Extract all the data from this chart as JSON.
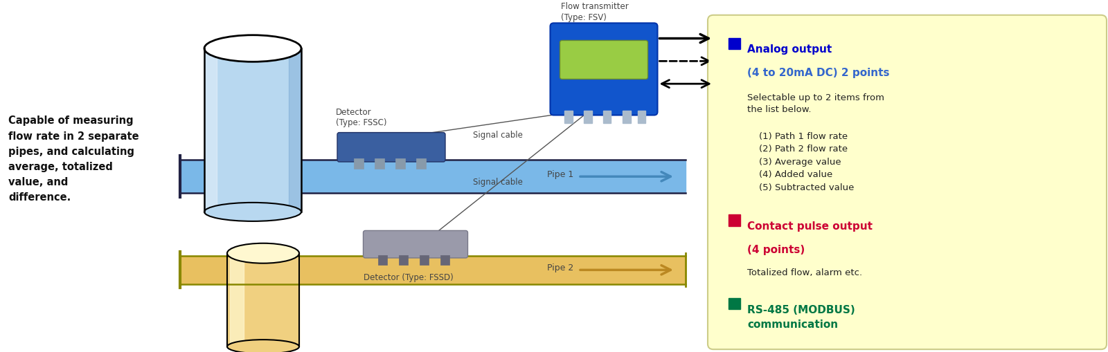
{
  "bg_color": "#ffffff",
  "info_box_bg": "#ffffcc",
  "info_box_border": "#cccc88",
  "pipe1_color": "#7ab8e8",
  "pipe1_dark": "#4488bb",
  "pipe2_color": "#e8c060",
  "pipe2_dark": "#bb8822",
  "pipe2_border": "#888800",
  "cylinder1_body": "#b8d8f0",
  "cylinder1_dark": "#6699cc",
  "cylinder2_body": "#f0d080",
  "cylinder2_highlight": "#fff8d0",
  "cylinder2_dark": "#c8962a",
  "detector1_color": "#4466aa",
  "detector2_color": "#999aaa",
  "transmitter_blue": "#1155cc",
  "transmitter_dark": "#0033aa",
  "screen_color": "#99cc44",
  "left_text": "Capable of measuring\nflow rate in 2 separate\npipes, and calculating\naverage, totalized\nvalue, and\ndifference.",
  "detector1_label": "Detector\n(Type: FSSC)",
  "detector2_label": "Detector (Type: FSSD)",
  "transmitter_label": "Flow transmitter\n(Type: FSV)",
  "signal_cable1": "Signal cable",
  "signal_cable2": "Signal cable",
  "pipe1_label": "Pipe 1",
  "pipe2_label": "Pipe 2",
  "analog_title": "Analog output",
  "analog_subtitle": "(4 to 20mA DC) 2 points",
  "analog_desc": "Selectable up to 2 items from\nthe list below.",
  "analog_list": "    (1) Path 1 flow rate\n    (2) Path 2 flow rate\n    (3) Average value\n    (4) Added value\n    (5) Subtracted value",
  "contact_title": "Contact pulse output",
  "contact_subtitle": "(4 points)",
  "contact_desc": "Totalized flow, alarm etc.",
  "rs485_title": "RS-485 (MODBUS)\ncommunication",
  "analog_sq_color": "#0000cc",
  "analog_title_color": "#0000cc",
  "analog_sub_color": "#3366cc",
  "contact_sq_color": "#cc0033",
  "contact_title_color": "#cc0033",
  "rs485_sq_color": "#007744",
  "rs485_title_color": "#007744",
  "text_color": "#222222",
  "label_color": "#444444"
}
